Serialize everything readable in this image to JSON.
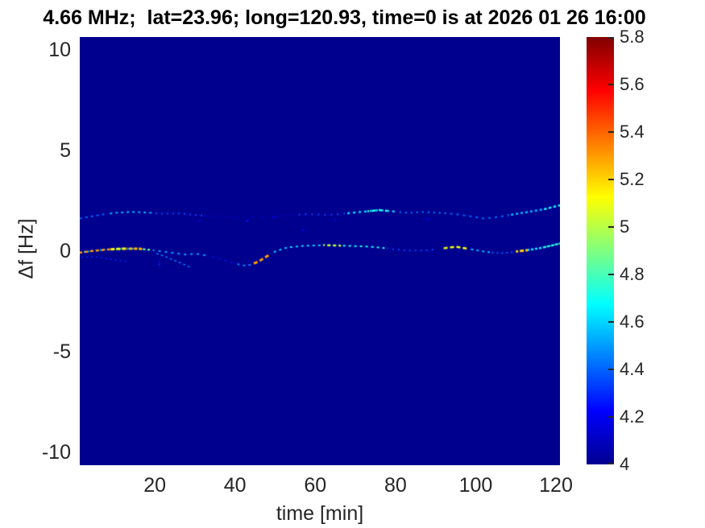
{
  "chart_data": {
    "type": "heatmap",
    "title": "4.66 MHz;  lat=23.96; long=120.93, time=0 is at 2026 01 26 16:00",
    "xlabel": "time [min]",
    "ylabel": "Δf [Hz]",
    "xlim": [
      1.3,
      121.0
    ],
    "ylim": [
      -10.64,
      10.64
    ],
    "x_ticks": [
      20,
      40,
      60,
      80,
      100,
      120
    ],
    "y_ticks": [
      10,
      5,
      0,
      -5,
      -10
    ],
    "grid": false,
    "background_value": 4.0,
    "colorbar": {
      "min": 4,
      "max": 5.8,
      "ticks": [
        4,
        4.2,
        4.4,
        4.6,
        4.8,
        5,
        5.2,
        5.4,
        5.6,
        5.8
      ],
      "position": "right",
      "colormap": "jet",
      "stops": [
        {
          "pos": 0.0,
          "color": "#00008F"
        },
        {
          "pos": 0.125,
          "color": "#0000FF"
        },
        {
          "pos": 0.375,
          "color": "#00FFFF"
        },
        {
          "pos": 0.625,
          "color": "#FFFF00"
        },
        {
          "pos": 0.875,
          "color": "#FF0000"
        },
        {
          "pos": 1.0,
          "color": "#800000"
        }
      ]
    },
    "traces": [
      {
        "name": "upper-sideband-trace",
        "path": [
          [
            1.3,
            1.62
          ],
          [
            4,
            1.72
          ],
          [
            7,
            1.82
          ],
          [
            10,
            1.9
          ],
          [
            14,
            1.95
          ],
          [
            18,
            1.92
          ],
          [
            22,
            1.86
          ],
          [
            26,
            1.88
          ],
          [
            30,
            1.8
          ],
          [
            34,
            1.72
          ],
          [
            38,
            1.7
          ],
          [
            43,
            1.68
          ],
          [
            48,
            1.7
          ],
          [
            53,
            1.78
          ],
          [
            58,
            1.84
          ],
          [
            63,
            1.8
          ],
          [
            68,
            1.88
          ],
          [
            72,
            1.96
          ],
          [
            76,
            2.04
          ],
          [
            79,
            1.98
          ],
          [
            83,
            1.9
          ],
          [
            87,
            1.94
          ],
          [
            91,
            1.9
          ],
          [
            95,
            1.84
          ],
          [
            99,
            1.72
          ],
          [
            102,
            1.62
          ],
          [
            105,
            1.68
          ],
          [
            108,
            1.78
          ],
          [
            111,
            1.88
          ],
          [
            114,
            1.98
          ],
          [
            117,
            2.08
          ],
          [
            121,
            2.28
          ]
        ],
        "segments": [
          {
            "t0": 1.3,
            "t1": 8,
            "value": 4.4,
            "dash": [
              3,
              4
            ],
            "width": 2
          },
          {
            "t0": 8,
            "t1": 20,
            "value": 4.55,
            "dash": [
              3,
              4
            ],
            "width": 2
          },
          {
            "t0": 20,
            "t1": 32,
            "value": 4.35,
            "dash": [
              2,
              5
            ],
            "width": 2
          },
          {
            "t0": 32,
            "t1": 42,
            "value": 4.15,
            "dash": [
              2,
              8
            ],
            "width": 2
          },
          {
            "t0": 42,
            "t1": 55,
            "value": 4.2,
            "dash": [
              2,
              10
            ],
            "width": 1.5
          },
          {
            "t0": 55,
            "t1": 68,
            "value": 4.35,
            "dash": [
              2,
              6
            ],
            "width": 2
          },
          {
            "t0": 68,
            "t1": 80,
            "value": 4.6,
            "dash": [
              3,
              4
            ],
            "width": 2.5
          },
          {
            "t0": 73,
            "t1": 78,
            "value": 4.75,
            "dash": [
              4,
              4
            ],
            "width": 2.5
          },
          {
            "t0": 80,
            "t1": 93,
            "value": 4.45,
            "dash": [
              2,
              5
            ],
            "width": 2
          },
          {
            "t0": 93,
            "t1": 108,
            "value": 4.4,
            "dash": [
              3,
              5
            ],
            "width": 2
          },
          {
            "t0": 108,
            "t1": 121,
            "value": 4.55,
            "dash": [
              3,
              3
            ],
            "width": 2.5
          },
          {
            "t0": 117,
            "t1": 121,
            "value": 4.7,
            "dash": [
              3,
              3
            ],
            "width": 2
          }
        ]
      },
      {
        "name": "main-doppler-trace",
        "path": [
          [
            1.3,
            -0.08
          ],
          [
            4,
            0.0
          ],
          [
            8,
            0.08
          ],
          [
            12,
            0.12
          ],
          [
            16,
            0.12
          ],
          [
            19,
            0.06
          ],
          [
            22,
            -0.02
          ],
          [
            25,
            -0.1
          ],
          [
            28,
            -0.18
          ],
          [
            30,
            -0.12
          ],
          [
            33,
            -0.22
          ],
          [
            36,
            -0.38
          ],
          [
            39,
            -0.55
          ],
          [
            42,
            -0.72
          ],
          [
            44,
            -0.68
          ],
          [
            46,
            -0.5
          ],
          [
            48,
            -0.25
          ],
          [
            50,
            -0.02
          ],
          [
            53,
            0.18
          ],
          [
            57,
            0.26
          ],
          [
            62,
            0.3
          ],
          [
            67,
            0.27
          ],
          [
            72,
            0.24
          ],
          [
            76,
            0.18
          ],
          [
            80,
            0.08
          ],
          [
            84,
            0.02
          ],
          [
            88,
            0.04
          ],
          [
            92,
            0.14
          ],
          [
            95,
            0.22
          ],
          [
            98,
            0.12
          ],
          [
            101,
            0.02
          ],
          [
            104,
            -0.08
          ],
          [
            107,
            -0.1
          ],
          [
            110,
            -0.02
          ],
          [
            113,
            0.05
          ],
          [
            116,
            0.15
          ],
          [
            119,
            0.28
          ],
          [
            121,
            0.38
          ]
        ],
        "segments": [
          {
            "t0": 1.3,
            "t1": 19,
            "value": 4.55,
            "dash": [
              2,
              3
            ],
            "width": 2
          },
          {
            "t0": 1.3,
            "t1": 9,
            "value": 5.3,
            "dash": [
              4,
              3
            ],
            "width": 2.5
          },
          {
            "t0": 9,
            "t1": 13,
            "value": 5.1,
            "dash": [
              5,
              2
            ],
            "width": 3
          },
          {
            "t0": 13,
            "t1": 17,
            "value": 5.25,
            "dash": [
              4,
              2
            ],
            "width": 3
          },
          {
            "t0": 17,
            "t1": 19.5,
            "value": 4.9,
            "dash": [
              3,
              3
            ],
            "width": 2
          },
          {
            "t0": 19.5,
            "t1": 33,
            "value": 4.5,
            "dash": [
              3,
              5
            ],
            "width": 2
          },
          {
            "t0": 33,
            "t1": 40,
            "value": 4.25,
            "dash": [
              2,
              6
            ],
            "width": 2
          },
          {
            "t0": 40,
            "t1": 44.5,
            "value": 4.45,
            "dash": [
              3,
              4
            ],
            "width": 2
          },
          {
            "t0": 44.5,
            "t1": 49,
            "value": 5.3,
            "dash": [
              5,
              3
            ],
            "width": 3
          },
          {
            "t0": 49,
            "t1": 62,
            "value": 4.6,
            "dash": [
              3,
              4
            ],
            "width": 2
          },
          {
            "t0": 62,
            "t1": 66.5,
            "value": 5.0,
            "dash": [
              4,
              3
            ],
            "width": 2.5
          },
          {
            "t0": 66.5,
            "t1": 78,
            "value": 4.7,
            "dash": [
              3,
              4
            ],
            "width": 2
          },
          {
            "t0": 78,
            "t1": 90,
            "value": 4.35,
            "dash": [
              2,
              5
            ],
            "width": 2
          },
          {
            "t0": 92,
            "t1": 98,
            "value": 5.1,
            "dash": [
              5,
              3
            ],
            "width": 2.5
          },
          {
            "t0": 98,
            "t1": 104,
            "value": 4.55,
            "dash": [
              3,
              4
            ],
            "width": 2
          },
          {
            "t0": 104,
            "t1": 110,
            "value": 4.4,
            "dash": [
              2,
              4
            ],
            "width": 2
          },
          {
            "t0": 110,
            "t1": 113,
            "value": 5.2,
            "dash": [
              5,
              2
            ],
            "width": 3
          },
          {
            "t0": 113,
            "t1": 121,
            "value": 4.65,
            "dash": [
              3,
              2
            ],
            "width": 2.5
          },
          {
            "t0": 117,
            "t1": 121,
            "value": 4.85,
            "dash": [
              2,
              3
            ],
            "width": 2
          }
        ]
      },
      {
        "name": "lower-left-branch",
        "path": [
          [
            1.3,
            -0.3
          ],
          [
            5,
            -0.28
          ],
          [
            9,
            -0.4
          ],
          [
            13,
            -0.52
          ]
        ],
        "segments": [
          {
            "t0": 1.3,
            "t1": 13,
            "value": 4.3,
            "dash": [
              2,
              4
            ],
            "width": 1.5
          }
        ]
      },
      {
        "name": "diverging-branch",
        "path": [
          [
            20,
            -0.08
          ],
          [
            23,
            -0.3
          ],
          [
            26,
            -0.55
          ],
          [
            29,
            -0.82
          ]
        ],
        "segments": [
          {
            "t0": 20,
            "t1": 29,
            "value": 4.45,
            "dash": [
              3,
              3
            ],
            "width": 1.5
          }
        ]
      },
      {
        "name": "vertical-streak",
        "path": [
          [
            21,
            -0.5
          ],
          [
            21.3,
            -0.95
          ]
        ],
        "segments": [
          {
            "t0": 21,
            "t1": 21.3,
            "value": 4.3,
            "dash": [
              2,
              2
            ],
            "width": 2
          }
        ]
      }
    ],
    "speckles": [
      [
        43,
        1.5,
        4.25
      ],
      [
        57,
        1.05,
        4.2
      ],
      [
        65,
        1.55,
        4.15
      ],
      [
        88,
        1.58,
        4.2
      ],
      [
        31,
        1.5,
        4.15
      ],
      [
        50,
        1.68,
        4.2
      ]
    ]
  }
}
